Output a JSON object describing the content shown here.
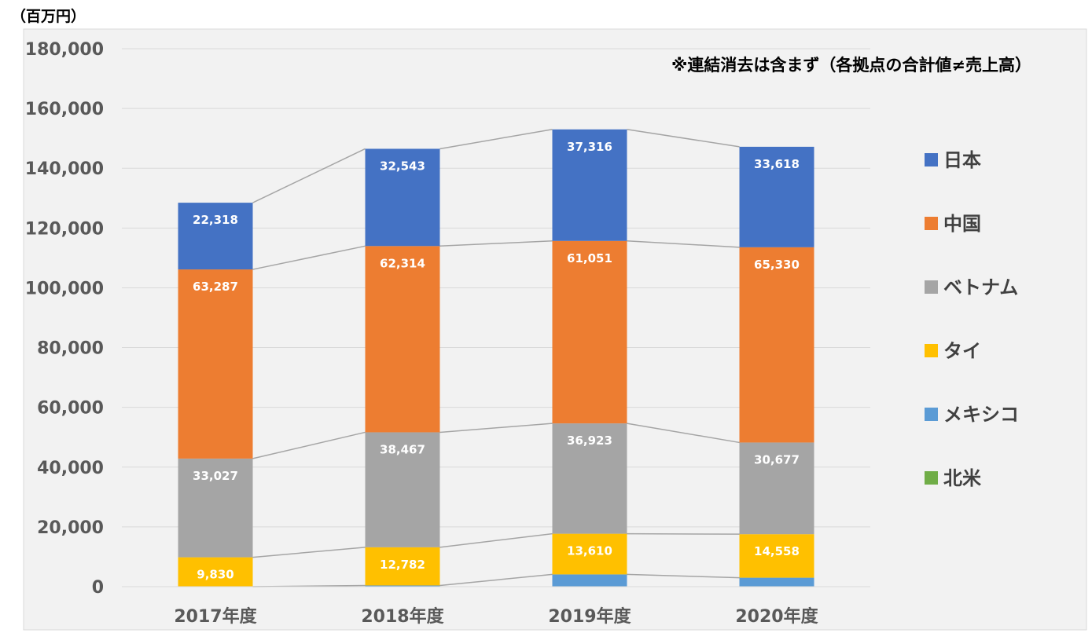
{
  "chart_data": {
    "type": "bar",
    "stacked": true,
    "unit_label": "（百万円）",
    "note": "※連結消去は含まず（各拠点の合計値≠売上高）",
    "categories": [
      "2017年度",
      "2018年度",
      "2019年度",
      "2020年度"
    ],
    "ylim": [
      0,
      180000
    ],
    "yticks": [
      0,
      20000,
      40000,
      60000,
      80000,
      100000,
      120000,
      140000,
      160000,
      180000
    ],
    "ytick_labels": [
      "0",
      "20,000",
      "40,000",
      "60,000",
      "80,000",
      "100,000",
      "120,000",
      "140,000",
      "160,000",
      "180,000"
    ],
    "grid": true,
    "legend_position": "right",
    "series_lines": true,
    "series": [
      {
        "name": "北米",
        "color": "#70AD47",
        "values": [
          0,
          0,
          0,
          0
        ],
        "labels": [
          "",
          "",
          "",
          ""
        ]
      },
      {
        "name": "メキシコ",
        "color": "#5B9BD5",
        "values": [
          0,
          400,
          4100,
          3000
        ],
        "labels": [
          "",
          "",
          "",
          ""
        ]
      },
      {
        "name": "タイ",
        "color": "#FFC000",
        "values": [
          9830,
          12782,
          13610,
          14558
        ],
        "labels": [
          "9,830",
          "12,782",
          "13,610",
          "14,558"
        ]
      },
      {
        "name": "ベトナム",
        "color": "#A5A5A5",
        "values": [
          33027,
          38467,
          36923,
          30677
        ],
        "labels": [
          "33,027",
          "38,467",
          "36,923",
          "30,677"
        ]
      },
      {
        "name": "中国",
        "color": "#ED7D31",
        "values": [
          63287,
          62314,
          61051,
          65330
        ],
        "labels": [
          "63,287",
          "62,314",
          "61,051",
          "65,330"
        ]
      },
      {
        "name": "日本",
        "color": "#4472C4",
        "values": [
          22318,
          32543,
          37316,
          33618
        ],
        "labels": [
          "22,318",
          "32,543",
          "37,316",
          "33,618"
        ]
      }
    ]
  }
}
